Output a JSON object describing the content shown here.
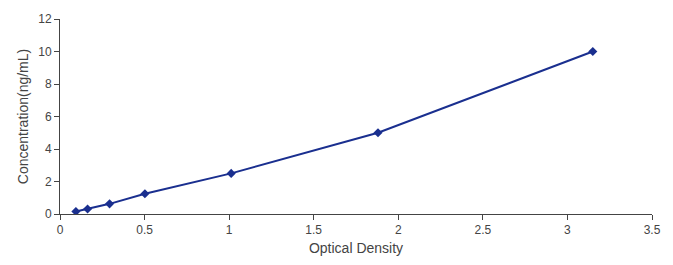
{
  "chart_data": {
    "type": "line",
    "x": [
      0.094,
      0.163,
      0.293,
      0.502,
      1.012,
      1.88,
      3.15
    ],
    "values": [
      0.156,
      0.312,
      0.625,
      1.25,
      2.5,
      5.0,
      10.0
    ],
    "color": "#1a2f8f",
    "marker": "diamond",
    "xlabel": "Optical Density",
    "ylabel": "Concentration(ng/mL)",
    "xlim": [
      0,
      3.5
    ],
    "ylim": [
      0,
      12
    ],
    "xticks": [
      0,
      0.5,
      1,
      1.5,
      2,
      2.5,
      3,
      3.5
    ],
    "yticks": [
      0,
      2,
      4,
      6,
      8,
      10,
      12
    ],
    "grid": false
  }
}
